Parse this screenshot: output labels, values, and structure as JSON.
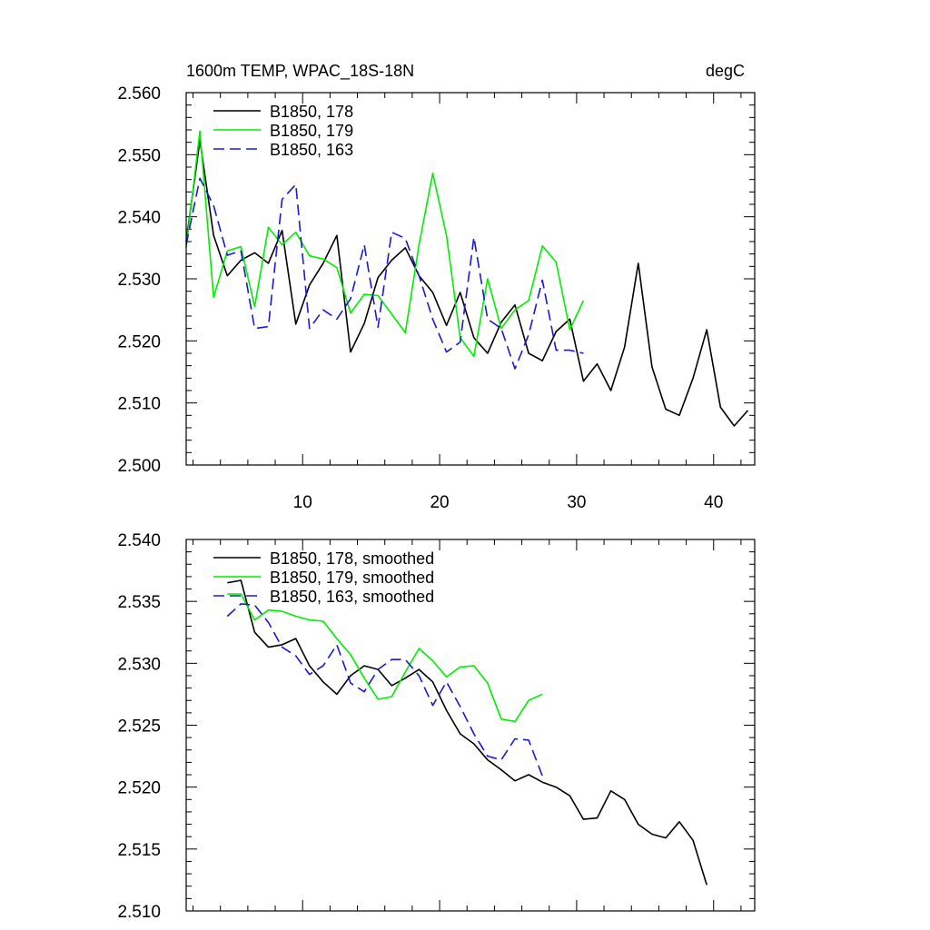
{
  "chart_data": [
    {
      "type": "line",
      "title": "1600m TEMP, WPAC_18S-18N",
      "units": "degC",
      "xlim": [
        1.5,
        43
      ],
      "ylim": [
        2.5,
        2.56
      ],
      "yticks": [
        "2.500",
        "2.510",
        "2.520",
        "2.530",
        "2.540",
        "2.550",
        "2.560"
      ],
      "xticks": [
        "10",
        "20",
        "30",
        "40"
      ],
      "show_x_labels": true,
      "legend_position": "top-left",
      "series": [
        {
          "name": "B1850, 178",
          "color": "#000000",
          "dash": "solid",
          "x": [
            1.5,
            2.5,
            3.5,
            4.5,
            5.5,
            6.5,
            7.5,
            8.5,
            9.5,
            10.5,
            11.5,
            12.5,
            13.5,
            14.5,
            15.5,
            16.5,
            17.5,
            18.5,
            19.5,
            20.5,
            21.5,
            22.5,
            23.5,
            24.5,
            25.5,
            26.5,
            27.5,
            28.5,
            29.5,
            30.5,
            31.5,
            32.5,
            33.5,
            34.5,
            35.5,
            36.5,
            37.5,
            38.5,
            39.5,
            40.5,
            41.5,
            42.5
          ],
          "values": [
            2.536,
            2.5523,
            2.537,
            2.5305,
            2.533,
            2.5342,
            2.5325,
            2.5378,
            2.5227,
            2.529,
            2.5325,
            2.537,
            2.5182,
            2.5228,
            2.5302,
            2.533,
            2.535,
            2.5305,
            2.5278,
            2.5225,
            2.5278,
            2.5205,
            2.518,
            2.523,
            2.5258,
            2.518,
            2.5168,
            2.5215,
            2.5235,
            2.5135,
            2.5163,
            2.512,
            2.519,
            2.5325,
            2.5158,
            2.509,
            2.508,
            2.514,
            2.5218,
            2.5093,
            2.5063,
            2.5088
          ]
        },
        {
          "name": "B1850, 179",
          "color": "#00ee00",
          "dash": "solid",
          "x": [
            1.5,
            2.5,
            3.5,
            4.5,
            5.5,
            6.5,
            7.5,
            8.5,
            9.5,
            10.5,
            11.5,
            12.5,
            13.5,
            14.5,
            15.5,
            16.5,
            17.5,
            18.5,
            19.5,
            20.5,
            21.5,
            22.5,
            23.5,
            24.5,
            25.5,
            26.5,
            27.5,
            28.5,
            29.5,
            30.5
          ],
          "values": [
            2.535,
            2.5538,
            2.527,
            2.5345,
            2.5352,
            2.5255,
            2.5383,
            2.5355,
            2.5375,
            2.5337,
            2.5332,
            2.5318,
            2.5245,
            2.5275,
            2.5273,
            2.5243,
            2.5213,
            2.5355,
            2.547,
            2.537,
            2.5205,
            2.5175,
            2.53,
            2.522,
            2.525,
            2.5265,
            2.5353,
            2.5327,
            2.5218,
            2.5265
          ]
        },
        {
          "name": "B1850, 163",
          "color": "#1a1acc",
          "dash": "dashed",
          "x": [
            1.5,
            2.5,
            3.5,
            4.5,
            5.5,
            6.5,
            7.5,
            8.5,
            9.5,
            10.5,
            11.5,
            12.5,
            13.5,
            14.5,
            15.5,
            16.5,
            17.5,
            18.5,
            19.5,
            20.5,
            21.5,
            22.5,
            23.5,
            24.5,
            25.5,
            26.5,
            27.5,
            28.5,
            29.5,
            30.5
          ],
          "values": [
            2.5355,
            2.5462,
            2.5418,
            2.5338,
            2.5345,
            2.522,
            2.5223,
            2.5428,
            2.5452,
            2.522,
            2.525,
            2.5235,
            2.5268,
            2.5355,
            2.5222,
            2.5375,
            2.5365,
            2.5305,
            2.5235,
            2.5182,
            2.5198,
            2.5367,
            2.5235,
            2.522,
            2.5155,
            2.521,
            2.5298,
            2.5185,
            2.5185,
            2.518
          ]
        }
      ]
    },
    {
      "type": "line",
      "title": "",
      "units": "",
      "xlim": [
        1.5,
        43
      ],
      "ylim": [
        2.51,
        2.54
      ],
      "yticks": [
        "2.510",
        "2.515",
        "2.520",
        "2.525",
        "2.530",
        "2.535",
        "2.540"
      ],
      "xticks": [
        "10",
        "20",
        "30",
        "40"
      ],
      "show_x_labels": false,
      "legend_position": "top-left",
      "series": [
        {
          "name": "B1850, 178, smoothed",
          "color": "#000000",
          "dash": "solid",
          "x": [
            4.5,
            5.5,
            6.5,
            7.5,
            8.5,
            9.5,
            10.5,
            11.5,
            12.5,
            13.5,
            14.5,
            15.5,
            16.5,
            17.5,
            18.5,
            19.5,
            20.5,
            21.5,
            22.5,
            23.5,
            24.5,
            25.5,
            26.5,
            27.5,
            28.5,
            29.5,
            30.5,
            31.5,
            32.5,
            33.5,
            34.5,
            35.5,
            36.5,
            37.5,
            38.5,
            39.5
          ],
          "values": [
            2.5365,
            2.5367,
            2.5325,
            2.5313,
            2.5315,
            2.532,
            2.5298,
            2.5285,
            2.5275,
            2.529,
            2.5298,
            2.5295,
            2.5282,
            2.5288,
            2.5295,
            2.5285,
            2.5262,
            2.5243,
            2.5235,
            2.5222,
            2.5214,
            2.5205,
            2.521,
            2.5204,
            2.52,
            2.5193,
            2.5174,
            2.5175,
            2.5197,
            2.519,
            2.517,
            2.5162,
            2.5159,
            2.5172,
            2.5157,
            2.5121
          ]
        },
        {
          "name": "B1850, 179, smoothed",
          "color": "#00ee00",
          "dash": "solid",
          "x": [
            4.5,
            5.5,
            6.5,
            7.5,
            8.5,
            9.5,
            10.5,
            11.5,
            12.5,
            13.5,
            14.5,
            15.5,
            16.5,
            17.5,
            18.5,
            19.5,
            20.5,
            21.5,
            22.5,
            23.5,
            24.5,
            25.5,
            26.5,
            27.5
          ],
          "values": [
            2.5356,
            2.5356,
            2.5335,
            2.5343,
            2.5342,
            2.5338,
            2.5335,
            2.5334,
            2.532,
            2.5307,
            2.5288,
            2.5271,
            2.5273,
            2.5293,
            2.5312,
            2.5302,
            2.5289,
            2.5297,
            2.5298,
            2.5284,
            2.5255,
            2.5253,
            2.527,
            2.5275
          ]
        },
        {
          "name": "B1850, 163, smoothed",
          "color": "#1a1acc",
          "dash": "dashed",
          "x": [
            4.5,
            5.5,
            6.5,
            7.5,
            8.5,
            9.5,
            10.5,
            11.5,
            12.5,
            13.5,
            14.5,
            15.5,
            16.5,
            17.5,
            18.5,
            19.5,
            20.5,
            21.5,
            22.5,
            23.5,
            24.5,
            25.5,
            26.5,
            27.5
          ],
          "values": [
            2.5338,
            2.5348,
            2.5347,
            2.5333,
            2.5313,
            2.5306,
            2.5291,
            2.5298,
            2.5315,
            2.5284,
            2.5277,
            2.5295,
            2.5303,
            2.5303,
            2.529,
            2.5266,
            2.5285,
            2.5265,
            2.5243,
            2.5225,
            2.5222,
            2.5239,
            2.5238,
            2.5209
          ]
        }
      ]
    }
  ]
}
